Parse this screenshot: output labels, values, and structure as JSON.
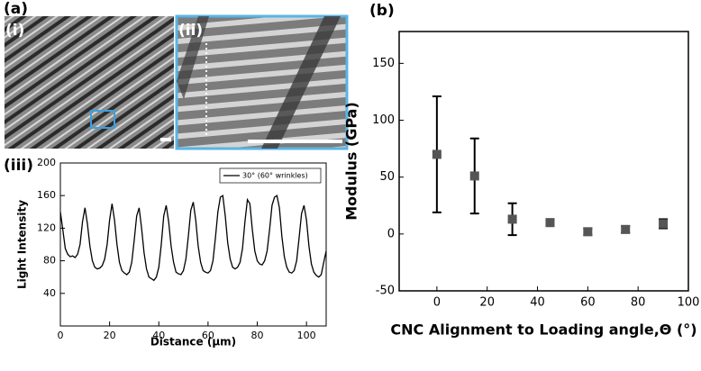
{
  "panel_labels": {
    "a": "(a)",
    "i": "(i)",
    "ii": "(ii)",
    "iii": "(iii)",
    "b": "(b)"
  },
  "chart_data": [
    {
      "type": "line",
      "x_label": "Distance (μm)",
      "y_label": "Light Intensity",
      "x": [
        0,
        1,
        2,
        3,
        4,
        5,
        6,
        7,
        8,
        9,
        10,
        11,
        12,
        13,
        14,
        15,
        16,
        17,
        18,
        19,
        20,
        21,
        22,
        23,
        24,
        25,
        26,
        27,
        28,
        29,
        30,
        31,
        32,
        33,
        34,
        35,
        36,
        37,
        38,
        39,
        40,
        41,
        42,
        43,
        44,
        45,
        46,
        47,
        48,
        49,
        50,
        51,
        52,
        53,
        54,
        55,
        56,
        57,
        58,
        59,
        60,
        61,
        62,
        63,
        64,
        65,
        66,
        67,
        68,
        69,
        70,
        71,
        72,
        73,
        74,
        75,
        76,
        77,
        78,
        79,
        80,
        81,
        82,
        83,
        84,
        85,
        86,
        87,
        88,
        89,
        90,
        91,
        92,
        93,
        94,
        95,
        96,
        97,
        98,
        99,
        100,
        101,
        102,
        103,
        104,
        105,
        106,
        107,
        108
      ],
      "series": [
        {
          "name": "30° (60° wrinkles)",
          "color": "#000000",
          "values": [
            140,
            118,
            95,
            88,
            85,
            86,
            84,
            88,
            100,
            128,
            145,
            125,
            98,
            80,
            72,
            70,
            71,
            74,
            82,
            100,
            130,
            150,
            130,
            100,
            78,
            68,
            65,
            63,
            66,
            78,
            105,
            135,
            145,
            120,
            90,
            70,
            60,
            58,
            56,
            60,
            72,
            100,
            135,
            148,
            128,
            98,
            78,
            66,
            64,
            63,
            68,
            82,
            110,
            142,
            152,
            130,
            98,
            78,
            68,
            66,
            65,
            68,
            80,
            108,
            140,
            158,
            160,
            135,
            102,
            82,
            72,
            70,
            72,
            78,
            95,
            128,
            155,
            150,
            118,
            92,
            80,
            76,
            75,
            80,
            92,
            118,
            148,
            158,
            160,
            145,
            110,
            85,
            72,
            66,
            65,
            68,
            80,
            108,
            138,
            148,
            130,
            98,
            76,
            66,
            62,
            60,
            63,
            78,
            92
          ]
        }
      ],
      "xlim": [
        0,
        108
      ],
      "xticks": [
        0,
        20,
        40,
        60,
        80,
        100
      ],
      "ylim": [
        0,
        200
      ],
      "yticks": [
        40,
        80,
        120,
        160,
        200
      ],
      "legend": "upper-right"
    },
    {
      "type": "scatter",
      "x_label": "CNC Alignment to Loading angle,Θ (°)",
      "y_label": "Modulus (GPa)",
      "x": [
        0,
        15,
        30,
        45,
        60,
        75,
        90
      ],
      "series": [
        {
          "color": "#555555",
          "values": [
            70,
            51,
            13,
            10,
            2,
            4,
            9
          ],
          "errors": [
            51,
            33,
            14,
            3,
            3,
            3,
            4
          ]
        }
      ],
      "xlim": [
        -15,
        100
      ],
      "xticks": [
        0,
        20,
        40,
        60,
        80,
        100
      ],
      "ylim": [
        -50,
        178
      ],
      "yticks": [
        -50,
        0,
        50,
        100,
        150
      ]
    }
  ]
}
